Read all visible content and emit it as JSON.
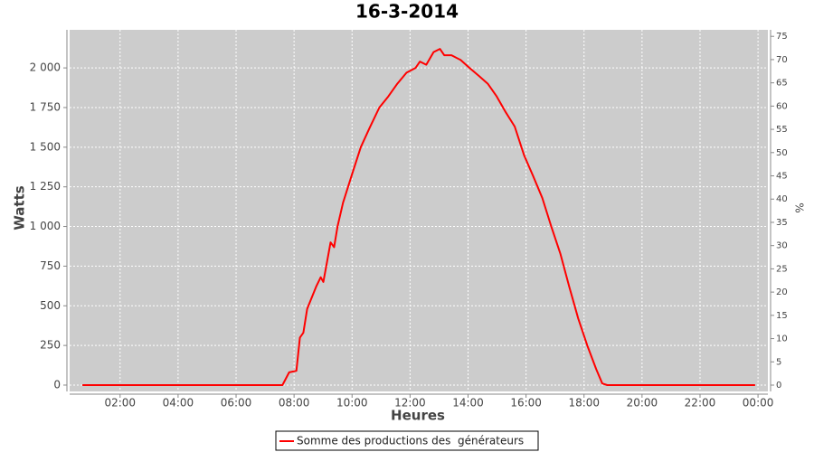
{
  "chart_data": {
    "type": "line",
    "title": "16-3-2014",
    "xlabel": "Heures",
    "ylabel": "Watts",
    "y2label": "%",
    "x": [
      0.7,
      2,
      4,
      6,
      7.6,
      7.83,
      8.08,
      8.2,
      8.32,
      8.45,
      8.76,
      8.92,
      9.01,
      9.14,
      9.26,
      9.38,
      9.5,
      9.69,
      10,
      10.3,
      10.6,
      10.94,
      11.25,
      11.56,
      11.88,
      12.19,
      12.34,
      12.56,
      12.81,
      13.03,
      13.18,
      13.43,
      13.74,
      14.05,
      14.37,
      14.68,
      14.99,
      15.3,
      15.61,
      15.93,
      16.24,
      16.56,
      16.87,
      17.18,
      17.49,
      17.8,
      18.11,
      18.42,
      18.63,
      18.8,
      20,
      22,
      23.9
    ],
    "series": [
      {
        "name": "Somme des productions des  générateurs",
        "color": "#ff0000",
        "values": [
          0,
          0,
          0,
          0,
          0,
          80,
          90,
          300,
          330,
          480,
          620,
          680,
          650,
          780,
          900,
          870,
          1000,
          1150,
          1330,
          1500,
          1620,
          1750,
          1820,
          1900,
          1970,
          2000,
          2040,
          2020,
          2100,
          2120,
          2080,
          2080,
          2050,
          2000,
          1950,
          1900,
          1820,
          1720,
          1630,
          1450,
          1320,
          1180,
          1000,
          830,
          620,
          420,
          250,
          100,
          10,
          0,
          0,
          0,
          0
        ]
      }
    ],
    "xlim": [
      0.26,
      24.34
    ],
    "xticks": [
      {
        "value": 2,
        "label": "02:00"
      },
      {
        "value": 4,
        "label": "04:00"
      },
      {
        "value": 6,
        "label": "06:00"
      },
      {
        "value": 8,
        "label": "08:00"
      },
      {
        "value": 10,
        "label": "10:00"
      },
      {
        "value": 12,
        "label": "12:00"
      },
      {
        "value": 14,
        "label": "14:00"
      },
      {
        "value": 16,
        "label": "16:00"
      },
      {
        "value": 18,
        "label": "18:00"
      },
      {
        "value": 20,
        "label": "20:00"
      },
      {
        "value": 22,
        "label": "22:00"
      },
      {
        "value": 24,
        "label": "00:00"
      }
    ],
    "ylim": [
      -40,
      2240
    ],
    "yticks": [
      0,
      250,
      500,
      750,
      {
        "value": 1000,
        "label": "1 000"
      },
      {
        "value": 1250,
        "label": "1 250"
      },
      {
        "value": 1500,
        "label": "1 500"
      },
      {
        "value": 1750,
        "label": "1 750"
      },
      {
        "value": 2000,
        "label": "2 000"
      }
    ],
    "y2lim": [
      -1.36,
      76.4
    ],
    "y2ticks": [
      0,
      5,
      10,
      15,
      20,
      25,
      30,
      35,
      40,
      45,
      50,
      55,
      60,
      65,
      70,
      75
    ],
    "grid": true,
    "legend": "bottom"
  }
}
